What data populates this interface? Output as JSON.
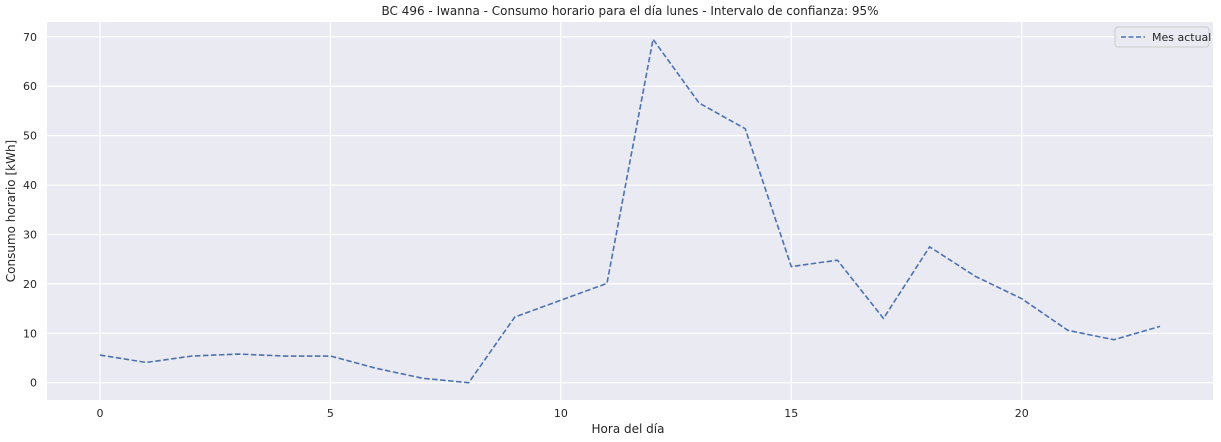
{
  "chart_data": {
    "type": "line",
    "title": "BC 496 - Iwanna - Consumo horario para el día lunes - Intervalo de confianza: 95%",
    "xlabel": "Hora del día",
    "ylabel": "Consumo horario [kWh]",
    "x": [
      0,
      1,
      2,
      3,
      4,
      5,
      6,
      7,
      8,
      9,
      10,
      11,
      12,
      13,
      14,
      15,
      16,
      17,
      18,
      19,
      20,
      21,
      22,
      23
    ],
    "series": [
      {
        "name": "Mes actual",
        "style": "dashed",
        "color": "#4c72b0",
        "values": [
          5.6,
          4.1,
          5.4,
          5.8,
          5.4,
          5.4,
          2.9,
          0.9,
          0.0,
          13.3,
          16.7,
          20.1,
          69.5,
          56.6,
          51.4,
          23.5,
          24.8,
          13.0,
          27.5,
          21.5,
          17.0,
          10.6,
          8.7,
          11.4
        ]
      }
    ],
    "xticks": [
      0,
      5,
      10,
      15,
      20
    ],
    "yticks": [
      0,
      10,
      20,
      30,
      40,
      50,
      60,
      70
    ],
    "xlim": [
      -1.15,
      24.15
    ],
    "ylim": [
      -3.5,
      73.0
    ],
    "grid": true,
    "legend_position": "top-right",
    "colors": {
      "plot_background": "#eaeaf2",
      "grid": "#ffffff",
      "line": "#4c72b0"
    }
  }
}
